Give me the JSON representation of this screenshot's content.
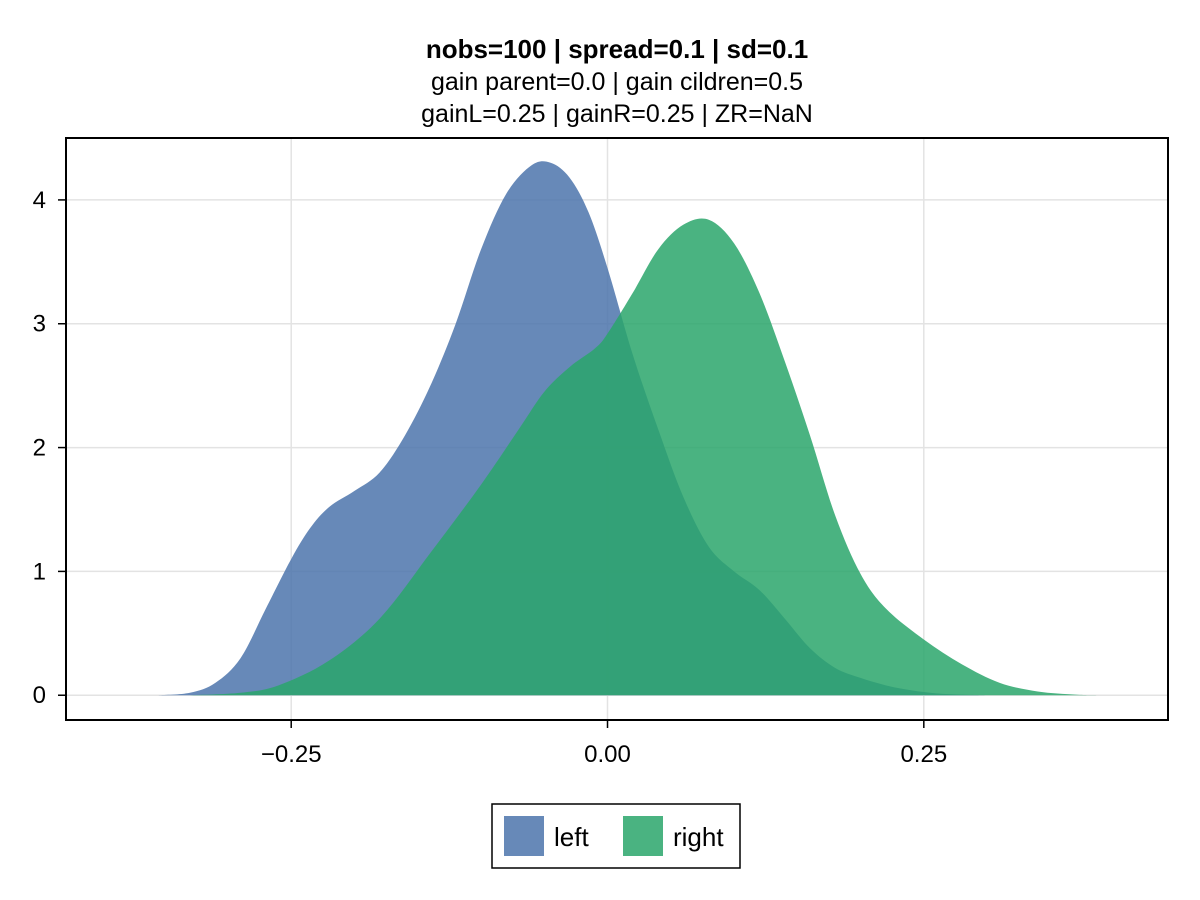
{
  "chart_data": {
    "type": "area",
    "title": "nobs=100 | spread=0.1 | sd=0.1",
    "subtitle_lines": [
      "gain parent=0.0 | gain cildren=0.5",
      "gainL=0.25 | gainR=0.25 | ZR=NaN"
    ],
    "xlabel": "",
    "ylabel": "",
    "xlim": [
      -0.428,
      0.443
    ],
    "ylim": [
      -0.2,
      4.5
    ],
    "x_ticks": [
      -0.25,
      0.0,
      0.25
    ],
    "x_tick_labels": [
      "−0.25",
      "0.00",
      "0.25"
    ],
    "y_ticks": [
      0,
      1,
      2,
      3,
      4
    ],
    "y_tick_labels": [
      "0",
      "1",
      "2",
      "3",
      "4"
    ],
    "grid": true,
    "legend_placement": "bottom-center",
    "series": [
      {
        "name": "left",
        "color": "#4c74ab",
        "x": [
          -0.355,
          -0.33,
          -0.31,
          -0.29,
          -0.27,
          -0.25,
          -0.235,
          -0.22,
          -0.2,
          -0.18,
          -0.16,
          -0.14,
          -0.12,
          -0.1,
          -0.08,
          -0.06,
          -0.045,
          -0.03,
          -0.015,
          0.0,
          0.02,
          0.04,
          0.06,
          0.08,
          0.1,
          0.12,
          0.14,
          0.16,
          0.18,
          0.2,
          0.22,
          0.24,
          0.26,
          0.28,
          0.3
        ],
        "y": [
          0.0,
          0.02,
          0.1,
          0.3,
          0.7,
          1.1,
          1.35,
          1.52,
          1.65,
          1.8,
          2.1,
          2.5,
          3.0,
          3.6,
          4.05,
          4.28,
          4.3,
          4.18,
          3.9,
          3.45,
          2.75,
          2.15,
          1.6,
          1.2,
          1.0,
          0.85,
          0.62,
          0.38,
          0.22,
          0.14,
          0.08,
          0.04,
          0.015,
          0.005,
          0.0
        ]
      },
      {
        "name": "right",
        "color": "#2aa66b",
        "x": [
          -0.33,
          -0.29,
          -0.26,
          -0.22,
          -0.18,
          -0.14,
          -0.1,
          -0.07,
          -0.05,
          -0.03,
          -0.01,
          0.0,
          0.02,
          0.04,
          0.06,
          0.08,
          0.1,
          0.12,
          0.14,
          0.16,
          0.18,
          0.2,
          0.22,
          0.25,
          0.28,
          0.31,
          0.34,
          0.37,
          0.39
        ],
        "y": [
          0.0,
          0.02,
          0.08,
          0.28,
          0.62,
          1.15,
          1.7,
          2.15,
          2.45,
          2.65,
          2.8,
          2.92,
          3.25,
          3.6,
          3.8,
          3.84,
          3.65,
          3.25,
          2.7,
          2.1,
          1.45,
          0.98,
          0.7,
          0.45,
          0.25,
          0.1,
          0.03,
          0.005,
          0.0
        ]
      }
    ]
  }
}
